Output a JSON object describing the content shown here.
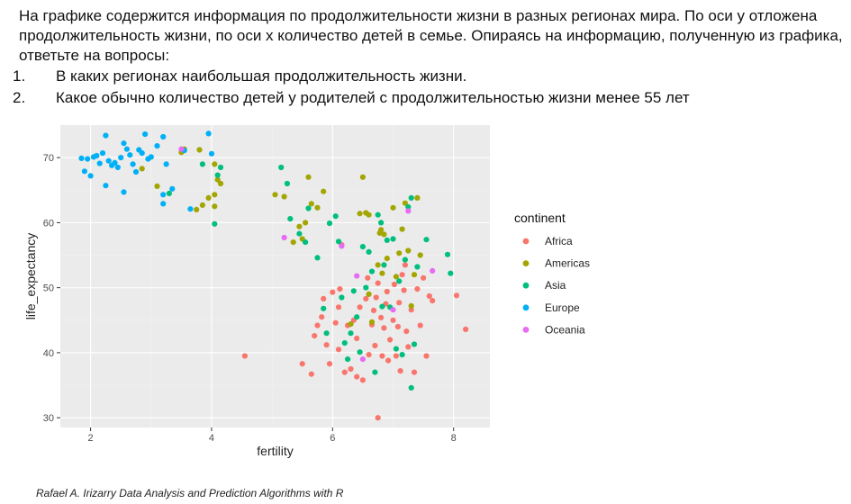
{
  "task": {
    "intro": "На графике  содержится информация по продолжительности жизни в разных регионах мира. По оси у отложена продолжительность жизни, по оси х количество детей в семье. Опираясь на информацию, полученную из  графика, ответьте на вопросы:",
    "questions": [
      {
        "num": "1.",
        "text": "В каких регионах наибольшая продолжительность жизни."
      },
      {
        "num": "2.",
        "text": "Какое обычно количество детей у родителей с продолжительностью жизни менее 55 лет"
      }
    ]
  },
  "credit": "Rafael A. Irizarry Data Analysis and Prediction Algorithms with R",
  "colors": {
    "Africa": "#F8766D",
    "Americas": "#A3A500",
    "Asia": "#00BF7D",
    "Europe": "#00B0F6",
    "Oceania": "#E76BF3",
    "panel_bg": "#EBEBEB",
    "grid_major": "#FFFFFF",
    "grid_minor": "#F3F3F3"
  },
  "chart_data": {
    "type": "scatter",
    "xlabel": "fertility",
    "ylabel": "life_expectancy",
    "xlim": [
      1.5,
      8.6
    ],
    "ylim": [
      28.5,
      75
    ],
    "x_ticks": [
      2,
      4,
      6,
      8
    ],
    "y_ticks": [
      30,
      40,
      50,
      60,
      70
    ],
    "x_tick_labels": [
      "2",
      "4",
      "6",
      "8"
    ],
    "y_tick_labels": [
      "30",
      "40",
      "50",
      "60",
      "70"
    ],
    "grid": true,
    "legend_position": "right",
    "legend_title": "continent",
    "series": [
      {
        "name": "Africa",
        "points": [
          [
            4.55,
            39.5
          ],
          [
            5.5,
            38.3
          ],
          [
            5.65,
            36.7
          ],
          [
            5.7,
            42.6
          ],
          [
            5.75,
            44.2
          ],
          [
            5.82,
            45.5
          ],
          [
            5.85,
            48.3
          ],
          [
            5.9,
            41.2
          ],
          [
            5.95,
            38.3
          ],
          [
            6.0,
            49.3
          ],
          [
            6.05,
            44.6
          ],
          [
            6.1,
            40.5
          ],
          [
            6.1,
            47.0
          ],
          [
            6.12,
            49.8
          ],
          [
            6.15,
            56.6
          ],
          [
            6.2,
            37.0
          ],
          [
            6.25,
            44.2
          ],
          [
            6.3,
            37.5
          ],
          [
            6.35,
            45.0
          ],
          [
            6.4,
            36.3
          ],
          [
            6.4,
            42.2
          ],
          [
            6.45,
            47.0
          ],
          [
            6.5,
            35.8
          ],
          [
            6.55,
            48.3
          ],
          [
            6.58,
            51.5
          ],
          [
            6.6,
            39.7
          ],
          [
            6.65,
            44.3
          ],
          [
            6.68,
            46.5
          ],
          [
            6.7,
            41.1
          ],
          [
            6.72,
            48.5
          ],
          [
            6.75,
            50.7
          ],
          [
            6.75,
            30.0
          ],
          [
            6.8,
            45.4
          ],
          [
            6.82,
            39.5
          ],
          [
            6.85,
            43.8
          ],
          [
            6.88,
            47.5
          ],
          [
            6.9,
            49.4
          ],
          [
            6.92,
            38.8
          ],
          [
            6.95,
            42.0
          ],
          [
            7.0,
            45.0
          ],
          [
            7.02,
            50.5
          ],
          [
            7.05,
            39.5
          ],
          [
            7.08,
            44.0
          ],
          [
            7.1,
            47.7
          ],
          [
            7.12,
            37.2
          ],
          [
            7.15,
            52.0
          ],
          [
            7.18,
            49.6
          ],
          [
            7.2,
            53.5
          ],
          [
            7.22,
            43.3
          ],
          [
            7.25,
            40.9
          ],
          [
            7.3,
            46.6
          ],
          [
            7.35,
            37.0
          ],
          [
            7.4,
            49.8
          ],
          [
            7.45,
            44.2
          ],
          [
            7.5,
            51.5
          ],
          [
            7.55,
            39.5
          ],
          [
            7.6,
            48.7
          ],
          [
            7.65,
            48.0
          ],
          [
            8.05,
            48.8
          ],
          [
            8.2,
            43.6
          ]
        ]
      },
      {
        "name": "Americas",
        "points": [
          [
            2.85,
            68.3
          ],
          [
            3.1,
            65.6
          ],
          [
            3.5,
            70.8
          ],
          [
            3.55,
            71.3
          ],
          [
            3.8,
            71.2
          ],
          [
            3.75,
            62.0
          ],
          [
            3.85,
            62.7
          ],
          [
            3.95,
            63.8
          ],
          [
            4.05,
            62.5
          ],
          [
            4.05,
            64.3
          ],
          [
            4.1,
            66.6
          ],
          [
            4.15,
            66.0
          ],
          [
            4.05,
            69.0
          ],
          [
            5.05,
            64.3
          ],
          [
            5.2,
            64.0
          ],
          [
            5.35,
            57.0
          ],
          [
            5.45,
            59.4
          ],
          [
            5.5,
            57.5
          ],
          [
            5.55,
            60.0
          ],
          [
            5.6,
            67.0
          ],
          [
            5.65,
            62.9
          ],
          [
            5.75,
            62.3
          ],
          [
            5.85,
            64.8
          ],
          [
            6.3,
            44.4
          ],
          [
            6.45,
            61.4
          ],
          [
            6.5,
            67.0
          ],
          [
            6.55,
            61.5
          ],
          [
            6.6,
            61.2
          ],
          [
            6.6,
            49.0
          ],
          [
            6.65,
            44.7
          ],
          [
            6.75,
            53.5
          ],
          [
            6.78,
            58.4
          ],
          [
            6.8,
            58.9
          ],
          [
            6.82,
            52.2
          ],
          [
            6.85,
            58.2
          ],
          [
            6.9,
            54.5
          ],
          [
            7.0,
            62.3
          ],
          [
            7.05,
            51.7
          ],
          [
            7.1,
            55.3
          ],
          [
            7.15,
            59.0
          ],
          [
            7.2,
            63.0
          ],
          [
            7.25,
            55.7
          ],
          [
            7.3,
            47.2
          ],
          [
            7.35,
            52.0
          ],
          [
            7.4,
            63.8
          ],
          [
            7.45,
            55.0
          ]
        ]
      },
      {
        "name": "Asia",
        "points": [
          [
            3.3,
            64.5
          ],
          [
            3.85,
            69.0
          ],
          [
            4.05,
            59.8
          ],
          [
            4.1,
            67.3
          ],
          [
            4.15,
            68.5
          ],
          [
            5.15,
            68.5
          ],
          [
            5.25,
            66.0
          ],
          [
            5.3,
            60.6
          ],
          [
            5.45,
            58.3
          ],
          [
            5.55,
            57.0
          ],
          [
            5.6,
            62.2
          ],
          [
            5.75,
            54.6
          ],
          [
            5.95,
            59.9
          ],
          [
            5.85,
            46.8
          ],
          [
            5.9,
            43.0
          ],
          [
            6.05,
            61.0
          ],
          [
            6.1,
            57.1
          ],
          [
            6.15,
            48.5
          ],
          [
            6.2,
            41.5
          ],
          [
            6.25,
            39.0
          ],
          [
            6.3,
            43.0
          ],
          [
            6.35,
            49.5
          ],
          [
            6.4,
            45.5
          ],
          [
            6.45,
            40.1
          ],
          [
            6.5,
            56.3
          ],
          [
            6.55,
            50.0
          ],
          [
            6.6,
            55.5
          ],
          [
            6.65,
            52.5
          ],
          [
            6.7,
            37.0
          ],
          [
            6.75,
            61.2
          ],
          [
            6.8,
            60.0
          ],
          [
            6.82,
            47.1
          ],
          [
            6.85,
            53.5
          ],
          [
            6.9,
            57.3
          ],
          [
            6.95,
            47.0
          ],
          [
            7.0,
            57.5
          ],
          [
            7.05,
            40.6
          ],
          [
            7.1,
            51.0
          ],
          [
            7.15,
            39.7
          ],
          [
            7.2,
            54.3
          ],
          [
            7.25,
            62.4
          ],
          [
            7.3,
            34.6
          ],
          [
            7.3,
            63.8
          ],
          [
            7.35,
            41.3
          ],
          [
            7.4,
            53.2
          ],
          [
            7.55,
            57.4
          ],
          [
            7.9,
            55.1
          ],
          [
            7.95,
            52.2
          ]
        ]
      },
      {
        "name": "Europe",
        "points": [
          [
            1.85,
            69.9
          ],
          [
            1.9,
            67.9
          ],
          [
            1.95,
            69.8
          ],
          [
            2.0,
            67.2
          ],
          [
            2.05,
            70.1
          ],
          [
            2.1,
            70.3
          ],
          [
            2.15,
            69.1
          ],
          [
            2.2,
            70.7
          ],
          [
            2.25,
            73.4
          ],
          [
            2.25,
            65.7
          ],
          [
            2.3,
            69.5
          ],
          [
            2.35,
            68.8
          ],
          [
            2.4,
            69.2
          ],
          [
            2.45,
            68.5
          ],
          [
            2.5,
            70.0
          ],
          [
            2.55,
            72.2
          ],
          [
            2.55,
            64.7
          ],
          [
            2.6,
            71.3
          ],
          [
            2.65,
            70.4
          ],
          [
            2.7,
            69.0
          ],
          [
            2.75,
            67.8
          ],
          [
            2.8,
            71.2
          ],
          [
            2.85,
            70.7
          ],
          [
            2.9,
            73.6
          ],
          [
            2.95,
            69.8
          ],
          [
            3.0,
            70.1
          ],
          [
            3.1,
            71.8
          ],
          [
            3.2,
            73.2
          ],
          [
            3.25,
            69.0
          ],
          [
            3.2,
            64.3
          ],
          [
            3.2,
            62.9
          ],
          [
            3.35,
            65.2
          ],
          [
            3.55,
            71.1
          ],
          [
            3.65,
            62.1
          ],
          [
            3.95,
            73.7
          ],
          [
            4.0,
            70.6
          ]
        ]
      },
      {
        "name": "Oceania",
        "points": [
          [
            3.5,
            71.3
          ],
          [
            5.2,
            57.7
          ],
          [
            6.15,
            56.4
          ],
          [
            6.4,
            51.8
          ],
          [
            6.5,
            39.0
          ],
          [
            7.0,
            46.6
          ],
          [
            7.25,
            61.8
          ],
          [
            7.65,
            52.6
          ]
        ]
      }
    ]
  }
}
